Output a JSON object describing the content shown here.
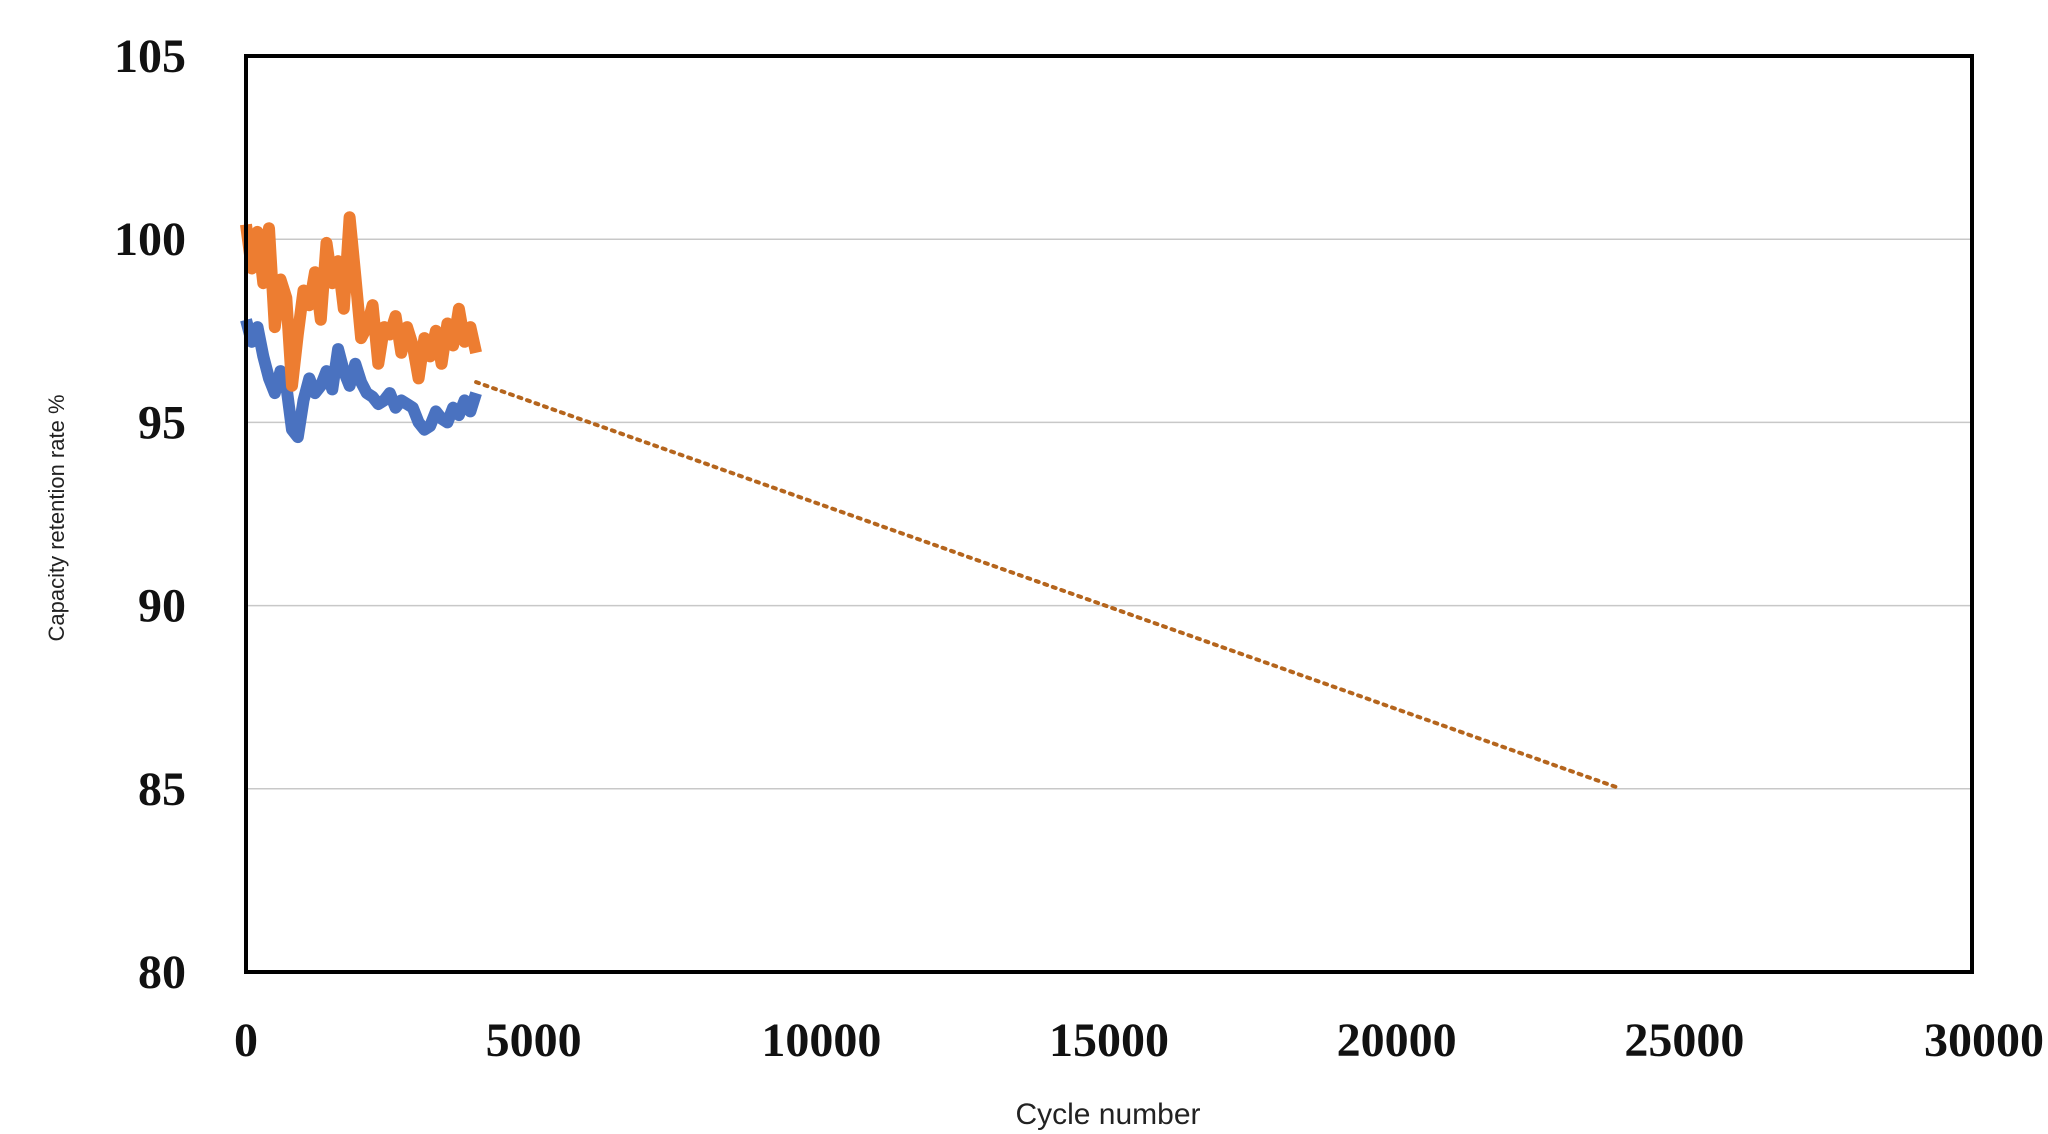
{
  "chart_data": {
    "type": "line",
    "title": "",
    "xlabel": "Cycle number",
    "ylabel": "Capacity retention rate %",
    "xlim": [
      0,
      30000
    ],
    "ylim": [
      80,
      105
    ],
    "x_ticks": [
      "0",
      "5000",
      "10000",
      "15000",
      "20000",
      "25000",
      "30000"
    ],
    "y_ticks": [
      "80",
      "85",
      "90",
      "95",
      "100",
      "105"
    ],
    "grid": "horizontal",
    "legend": "none",
    "series": [
      {
        "color": "#4a72c0",
        "style": "solid",
        "x": [
          0,
          100,
          200,
          300,
          400,
          500,
          600,
          700,
          800,
          900,
          1000,
          1100,
          1200,
          1300,
          1400,
          1500,
          1600,
          1700,
          1800,
          1900,
          2000,
          2100,
          2200,
          2300,
          2400,
          2500,
          2600,
          2700,
          2800,
          2900,
          3000,
          3100,
          3200,
          3300,
          3400,
          3500,
          3600,
          3700,
          3800,
          3900,
          4000
        ],
        "y": [
          97.8,
          97.2,
          97.6,
          96.8,
          96.2,
          95.8,
          96.4,
          96.0,
          94.8,
          94.6,
          95.6,
          96.2,
          95.8,
          96.0,
          96.4,
          95.9,
          97.0,
          96.4,
          96.0,
          96.6,
          96.1,
          95.8,
          95.7,
          95.5,
          95.6,
          95.8,
          95.4,
          95.6,
          95.5,
          95.4,
          95.0,
          94.8,
          94.9,
          95.3,
          95.1,
          95.0,
          95.4,
          95.2,
          95.6,
          95.3,
          95.8
        ]
      },
      {
        "color": "#ed7d31",
        "style": "solid",
        "x": [
          0,
          100,
          200,
          300,
          400,
          500,
          600,
          700,
          800,
          900,
          1000,
          1100,
          1200,
          1300,
          1400,
          1500,
          1600,
          1700,
          1800,
          1900,
          2000,
          2100,
          2200,
          2300,
          2400,
          2500,
          2600,
          2700,
          2800,
          2900,
          3000,
          3100,
          3200,
          3300,
          3400,
          3500,
          3600,
          3700,
          3800,
          3900,
          4000
        ],
        "y": [
          100.4,
          99.2,
          100.2,
          98.8,
          100.3,
          97.6,
          98.9,
          98.4,
          96.0,
          97.4,
          98.6,
          98.2,
          99.1,
          97.8,
          99.9,
          98.8,
          99.4,
          98.1,
          100.6,
          99.0,
          97.3,
          97.6,
          98.2,
          96.6,
          97.6,
          97.4,
          97.9,
          96.9,
          97.6,
          97.1,
          96.2,
          97.3,
          96.8,
          97.5,
          96.6,
          97.7,
          97.1,
          98.1,
          97.2,
          97.6,
          96.9
        ]
      },
      {
        "color": "#b5651d",
        "style": "dotted",
        "x": [
          4000,
          23900
        ],
        "y": [
          96.1,
          85.0
        ]
      }
    ]
  }
}
